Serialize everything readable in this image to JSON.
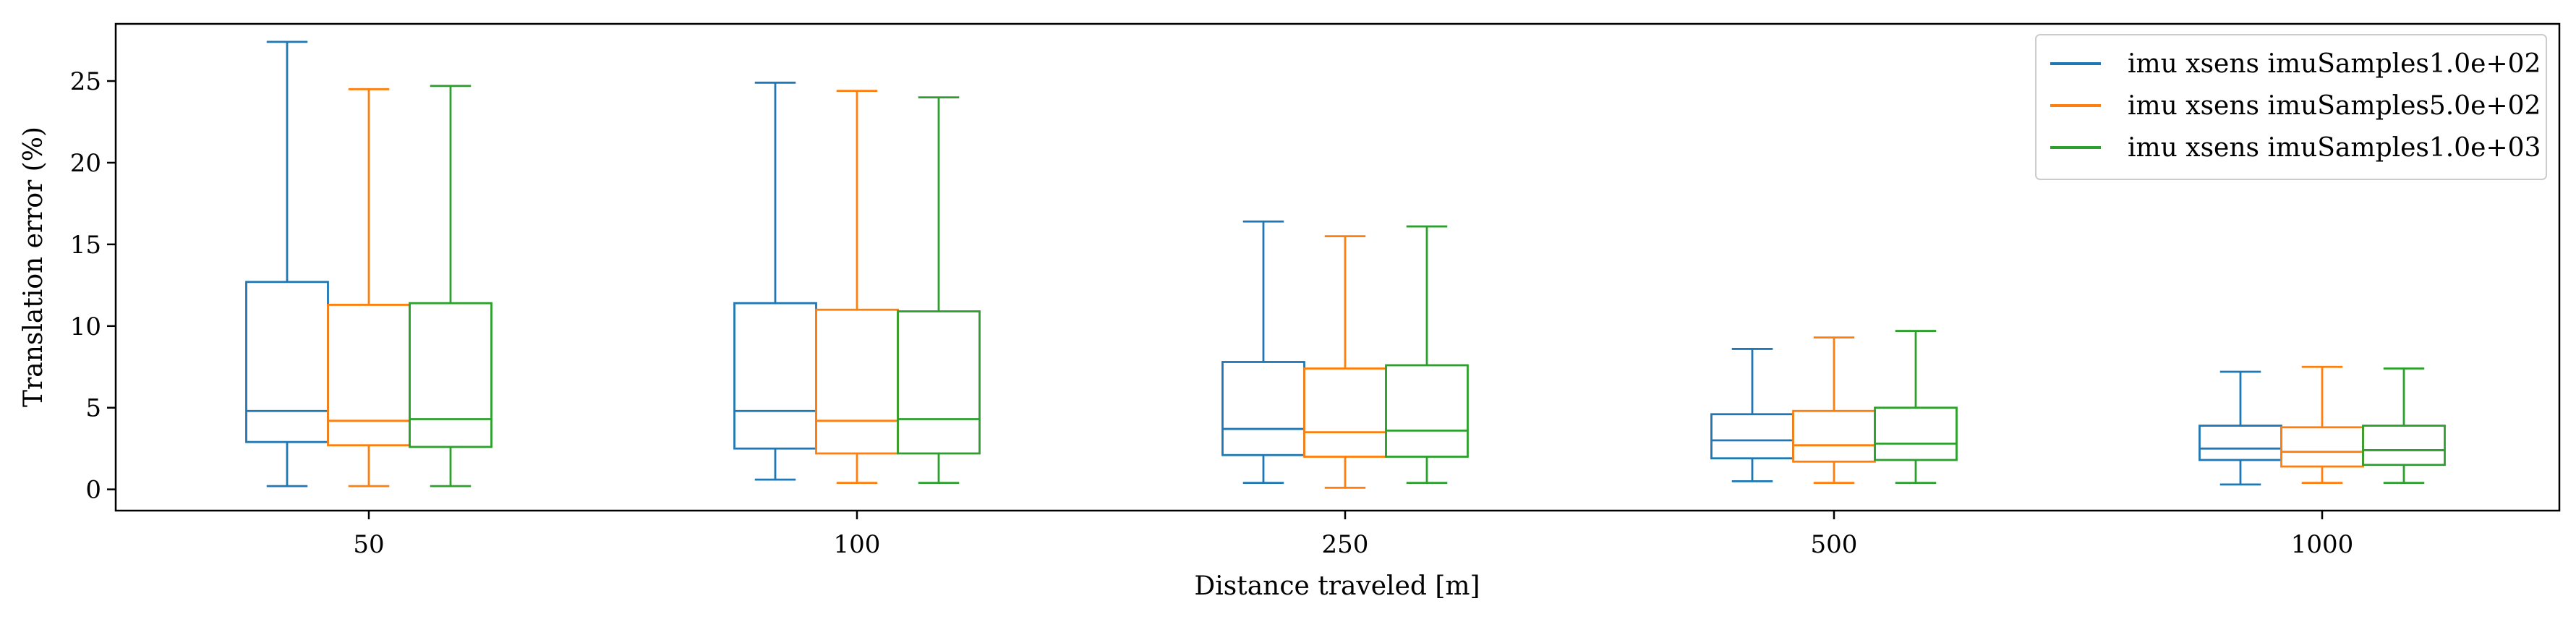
{
  "chart_data": {
    "type": "boxplot",
    "title": "",
    "xlabel": "Distance traveled [m]",
    "ylabel": "Translation error (%)",
    "ylim": [
      -1.3,
      28.5
    ],
    "yticks": [
      0,
      5,
      10,
      15,
      20,
      25
    ],
    "grid": false,
    "legend_position": "top-right",
    "categories": [
      "50",
      "100",
      "250",
      "500",
      "1000"
    ],
    "series": [
      {
        "name": "imu xsens imuSamples1.0e+02",
        "color": "#1f77b4",
        "boxes": [
          {
            "whislo": 0.2,
            "q1": 2.9,
            "med": 4.8,
            "q3": 12.7,
            "whishi": 27.4
          },
          {
            "whislo": 0.6,
            "q1": 2.5,
            "med": 4.8,
            "q3": 11.4,
            "whishi": 24.9
          },
          {
            "whislo": 0.4,
            "q1": 2.1,
            "med": 3.7,
            "q3": 7.8,
            "whishi": 16.4
          },
          {
            "whislo": 0.5,
            "q1": 1.9,
            "med": 3.0,
            "q3": 4.6,
            "whishi": 8.6
          },
          {
            "whislo": 0.3,
            "q1": 1.8,
            "med": 2.5,
            "q3": 3.9,
            "whishi": 7.2
          }
        ]
      },
      {
        "name": "imu xsens imuSamples5.0e+02",
        "color": "#ff7f0e",
        "boxes": [
          {
            "whislo": 0.2,
            "q1": 2.7,
            "med": 4.2,
            "q3": 11.3,
            "whishi": 24.5
          },
          {
            "whislo": 0.4,
            "q1": 2.2,
            "med": 4.2,
            "q3": 11.0,
            "whishi": 24.4
          },
          {
            "whislo": 0.1,
            "q1": 2.0,
            "med": 3.5,
            "q3": 7.4,
            "whishi": 15.5
          },
          {
            "whislo": 0.4,
            "q1": 1.7,
            "med": 2.7,
            "q3": 4.8,
            "whishi": 9.3
          },
          {
            "whislo": 0.4,
            "q1": 1.4,
            "med": 2.3,
            "q3": 3.8,
            "whishi": 7.5
          }
        ]
      },
      {
        "name": "imu xsens imuSamples1.0e+03",
        "color": "#2ca02c",
        "boxes": [
          {
            "whislo": 0.2,
            "q1": 2.6,
            "med": 4.3,
            "q3": 11.4,
            "whishi": 24.7
          },
          {
            "whislo": 0.4,
            "q1": 2.2,
            "med": 4.3,
            "q3": 10.9,
            "whishi": 24.0
          },
          {
            "whislo": 0.4,
            "q1": 2.0,
            "med": 3.6,
            "q3": 7.6,
            "whishi": 16.1
          },
          {
            "whislo": 0.4,
            "q1": 1.8,
            "med": 2.8,
            "q3": 5.0,
            "whishi": 9.7
          },
          {
            "whislo": 0.4,
            "q1": 1.5,
            "med": 2.4,
            "q3": 3.9,
            "whishi": 7.4
          }
        ]
      }
    ]
  }
}
